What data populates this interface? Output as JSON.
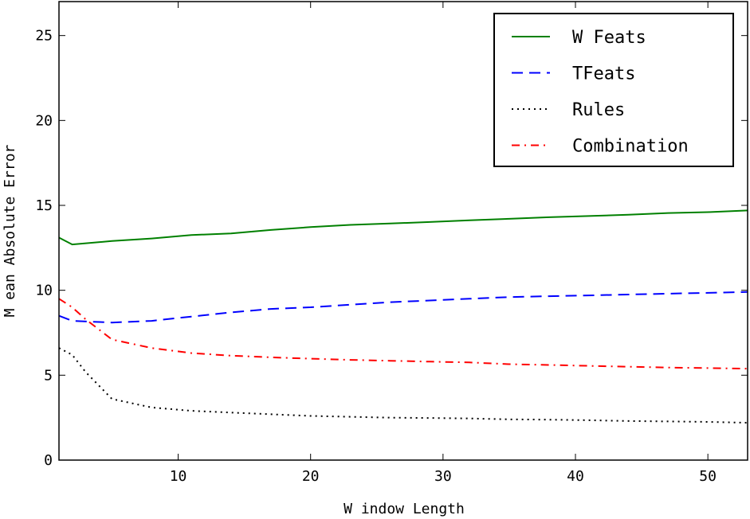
{
  "chart_data": {
    "type": "line",
    "xlabel": "W indow Length",
    "ylabel": "M ean Absolute Error",
    "xlim": [
      1,
      53
    ],
    "ylim": [
      0,
      27
    ],
    "x_ticks": [
      10,
      20,
      30,
      40,
      50
    ],
    "y_ticks": [
      0,
      5,
      10,
      15,
      20,
      25
    ],
    "grid": false,
    "legend_position": "top-right",
    "series": [
      {
        "name": "W Feats",
        "color": "#008000",
        "style": "solid",
        "x": [
          1,
          2,
          5,
          8,
          11,
          14,
          17,
          20,
          23,
          26,
          29,
          32,
          35,
          38,
          41,
          44,
          47,
          50,
          53
        ],
        "y": [
          13.1,
          12.7,
          12.9,
          13.05,
          13.25,
          13.35,
          13.55,
          13.72,
          13.85,
          13.93,
          14.02,
          14.12,
          14.21,
          14.3,
          14.37,
          14.45,
          14.55,
          14.6,
          14.7
        ]
      },
      {
        "name": "TFeats",
        "color": "#0000ff",
        "style": "dashed",
        "x": [
          1,
          2,
          5,
          8,
          11,
          14,
          17,
          20,
          23,
          26,
          29,
          32,
          35,
          38,
          41,
          44,
          47,
          50,
          53
        ],
        "y": [
          8.5,
          8.2,
          8.1,
          8.2,
          8.45,
          8.7,
          8.9,
          9.0,
          9.15,
          9.3,
          9.4,
          9.5,
          9.6,
          9.65,
          9.7,
          9.75,
          9.8,
          9.85,
          9.9
        ]
      },
      {
        "name": "Rules",
        "color": "#000000",
        "style": "dotted",
        "x": [
          1,
          2,
          3,
          5,
          8,
          11,
          14,
          17,
          20,
          23,
          26,
          29,
          32,
          35,
          38,
          41,
          44,
          47,
          50,
          53
        ],
        "y": [
          6.6,
          6.2,
          5.2,
          3.6,
          3.1,
          2.9,
          2.8,
          2.7,
          2.6,
          2.55,
          2.5,
          2.48,
          2.45,
          2.4,
          2.38,
          2.35,
          2.3,
          2.28,
          2.25,
          2.2
        ]
      },
      {
        "name": "Combination",
        "color": "#ff0000",
        "style": "dashdot",
        "x": [
          1,
          2,
          3,
          5,
          8,
          11,
          14,
          17,
          20,
          23,
          26,
          29,
          32,
          35,
          38,
          41,
          44,
          47,
          50,
          53
        ],
        "y": [
          9.5,
          9.0,
          8.3,
          7.1,
          6.6,
          6.3,
          6.15,
          6.05,
          5.97,
          5.9,
          5.85,
          5.8,
          5.75,
          5.65,
          5.6,
          5.55,
          5.5,
          5.45,
          5.42,
          5.38
        ]
      }
    ]
  }
}
